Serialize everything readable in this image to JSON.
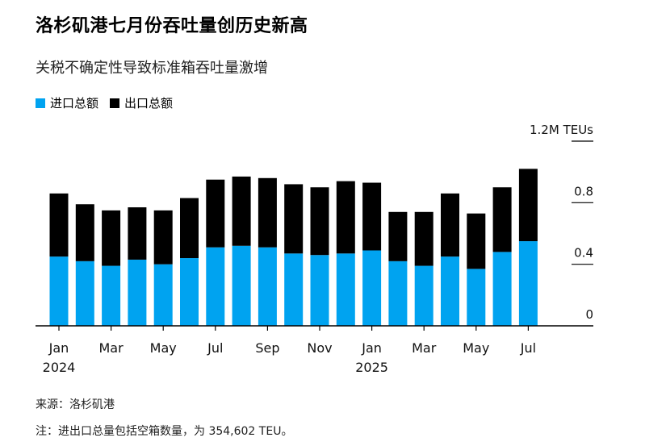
{
  "title": "洛杉矶港七月份吞吐量创历史新高",
  "subtitle": "关税不确定性导致标准箱吞吐量激增",
  "legend": [
    {
      "label": "进口总额",
      "color": "#00a3f0"
    },
    {
      "label": "出口总额",
      "color": "#000000"
    }
  ],
  "source": "来源：洛杉矶港",
  "note": "注：进出口总量包括空箱数量，为 354,602 TEU。",
  "chart_data": {
    "type": "bar",
    "stacked": true,
    "title": "洛杉矶港七月份吞吐量创历史新高",
    "ylabel": "TEU",
    "ylim": [
      0,
      1.2
    ],
    "y_ticks": [
      {
        "value": 1.2,
        "label": "1.2M TEUs"
      },
      {
        "value": 0.8,
        "label": "0.8"
      },
      {
        "value": 0.4,
        "label": "0.4"
      },
      {
        "value": 0,
        "label": "0"
      }
    ],
    "x_ticks": [
      {
        "index": 0,
        "label": "Jan",
        "sub": "2024"
      },
      {
        "index": 2,
        "label": "Mar",
        "sub": ""
      },
      {
        "index": 4,
        "label": "May",
        "sub": ""
      },
      {
        "index": 6,
        "label": "Jul",
        "sub": ""
      },
      {
        "index": 8,
        "label": "Sep",
        "sub": ""
      },
      {
        "index": 10,
        "label": "Nov",
        "sub": ""
      },
      {
        "index": 12,
        "label": "Jan",
        "sub": "2025"
      },
      {
        "index": 14,
        "label": "Mar",
        "sub": ""
      },
      {
        "index": 16,
        "label": "May",
        "sub": ""
      },
      {
        "index": 18,
        "label": "Jul",
        "sub": ""
      }
    ],
    "categories": [
      "2024-01",
      "2024-02",
      "2024-03",
      "2024-04",
      "2024-05",
      "2024-06",
      "2024-07",
      "2024-08",
      "2024-09",
      "2024-10",
      "2024-11",
      "2024-12",
      "2025-01",
      "2025-02",
      "2025-03",
      "2025-04",
      "2025-05",
      "2025-06",
      "2025-07"
    ],
    "series": [
      {
        "name": "进口总额",
        "color": "#00a3f0",
        "values": [
          0.45,
          0.42,
          0.39,
          0.43,
          0.4,
          0.44,
          0.51,
          0.52,
          0.51,
          0.47,
          0.46,
          0.47,
          0.49,
          0.42,
          0.39,
          0.45,
          0.37,
          0.48,
          0.55
        ]
      },
      {
        "name": "出口总额",
        "color": "#000000",
        "values": [
          0.41,
          0.37,
          0.36,
          0.34,
          0.35,
          0.39,
          0.44,
          0.45,
          0.45,
          0.45,
          0.44,
          0.47,
          0.44,
          0.32,
          0.35,
          0.41,
          0.36,
          0.42,
          0.47
        ]
      }
    ]
  }
}
